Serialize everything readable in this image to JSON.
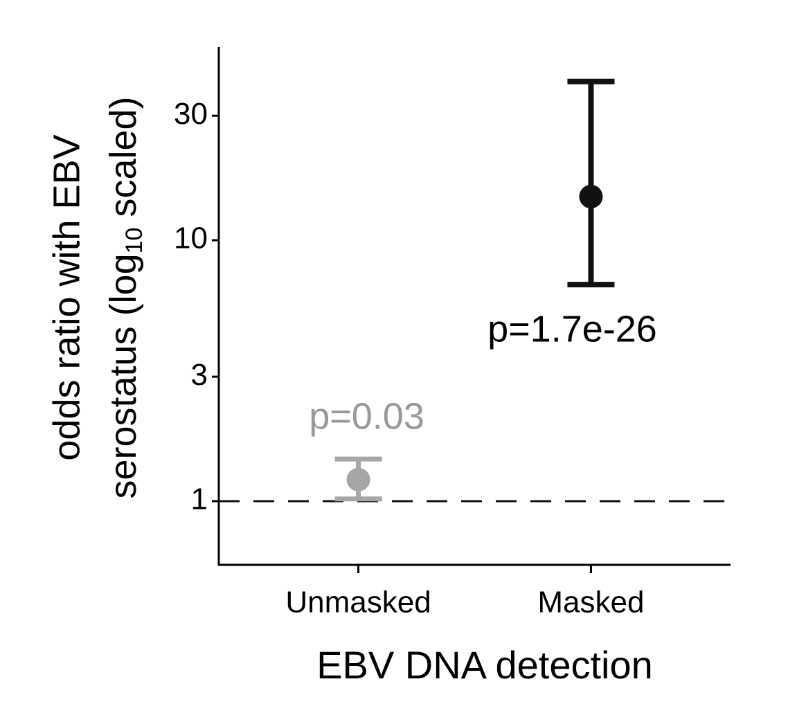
{
  "chart_data": {
    "type": "errorbar",
    "x_label": "EBV DNA detection",
    "y_label": {
      "line1": "odds ratio with EBV",
      "line2_start": "serostatus (log",
      "subscript": "10",
      "line2_end": " scaled)"
    },
    "categories": [
      "Unmasked",
      "Masked"
    ],
    "values": [
      1.21,
      14.7
    ],
    "lower": [
      1.02,
      6.76
    ],
    "upper": [
      1.45,
      40.6
    ],
    "colors": [
      "#a6a6a6",
      "#111111"
    ],
    "annotations": [
      {
        "text": "p=0.03",
        "color": "#999999",
        "position": "above"
      },
      {
        "text": "p=1.7e-26",
        "color": "#000000",
        "position": "below"
      }
    ],
    "reference_line": 1,
    "yscale": "log",
    "ylim": [
      0.57,
      55
    ],
    "yticks": [
      1,
      3,
      10,
      30
    ]
  }
}
